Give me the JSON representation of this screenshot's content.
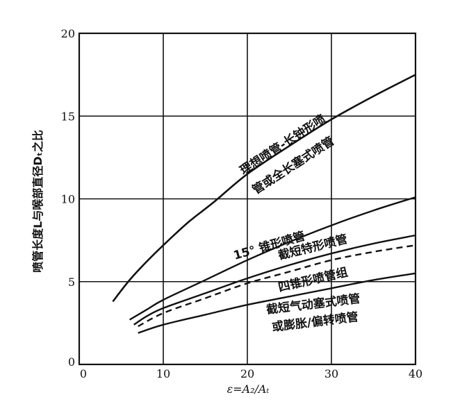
{
  "chart_data": {
    "type": "line",
    "xlabel": "ε=A₂/Aₜ",
    "ylabel": "喷管长度L与喉部直径Dₜ之比",
    "xlim": [
      0,
      40
    ],
    "ylim": [
      0,
      20
    ],
    "x_ticks": [
      0,
      10,
      20,
      30,
      40
    ],
    "y_ticks": [
      0,
      5,
      10,
      15,
      20
    ],
    "x_tick_labels": [
      "0",
      "10",
      "20",
      "30",
      "40"
    ],
    "y_tick_labels": [
      "0",
      "5",
      "10",
      "15",
      "20"
    ],
    "grid": true,
    "series": [
      {
        "name": "理想喷管-长钟形喷管或全长塞式喷管",
        "label_lines": [
          "理想喷管-长钟形喷",
          "管或全长塞式喷管"
        ],
        "style": "solid",
        "x": [
          4,
          6,
          8,
          10,
          13,
          16,
          20,
          25,
          30,
          35,
          40
        ],
        "y": [
          3.8,
          5.1,
          6.2,
          7.2,
          8.6,
          9.8,
          11.5,
          13.2,
          14.8,
          16.2,
          17.5
        ]
      },
      {
        "name": "15° 锥形喷管",
        "label_lines": [
          "15°  锥形喷管"
        ],
        "style": "solid",
        "x": [
          6,
          8,
          10,
          15,
          20,
          25,
          30,
          35,
          40
        ],
        "y": [
          2.7,
          3.3,
          3.9,
          5.1,
          6.3,
          7.4,
          8.4,
          9.3,
          10.1
        ]
      },
      {
        "name": "截短特形喷管",
        "label_lines": [
          "截短特形喷管"
        ],
        "style": "solid",
        "x": [
          6.5,
          8,
          10,
          15,
          20,
          25,
          30,
          35,
          40
        ],
        "y": [
          2.4,
          2.9,
          3.4,
          4.3,
          5.2,
          6.0,
          6.7,
          7.3,
          7.8
        ]
      },
      {
        "name": "四锥形喷管组",
        "label_lines": [
          "四锥形喷管组"
        ],
        "style": "dashed",
        "x": [
          7,
          10,
          15,
          20,
          25,
          30,
          35,
          40
        ],
        "y": [
          2.3,
          3.1,
          4.0,
          4.9,
          5.6,
          6.3,
          6.8,
          7.2
        ]
      },
      {
        "name": "截短气动塞式喷管或膨胀/偏转喷管",
        "label_lines": [
          "截短气动塞式喷管",
          "或膨胀/偏转喷管"
        ],
        "style": "solid",
        "x": [
          7,
          10,
          15,
          20,
          25,
          30,
          35,
          40
        ],
        "y": [
          1.9,
          2.4,
          3.0,
          3.6,
          4.1,
          4.6,
          5.1,
          5.5
        ]
      }
    ]
  }
}
